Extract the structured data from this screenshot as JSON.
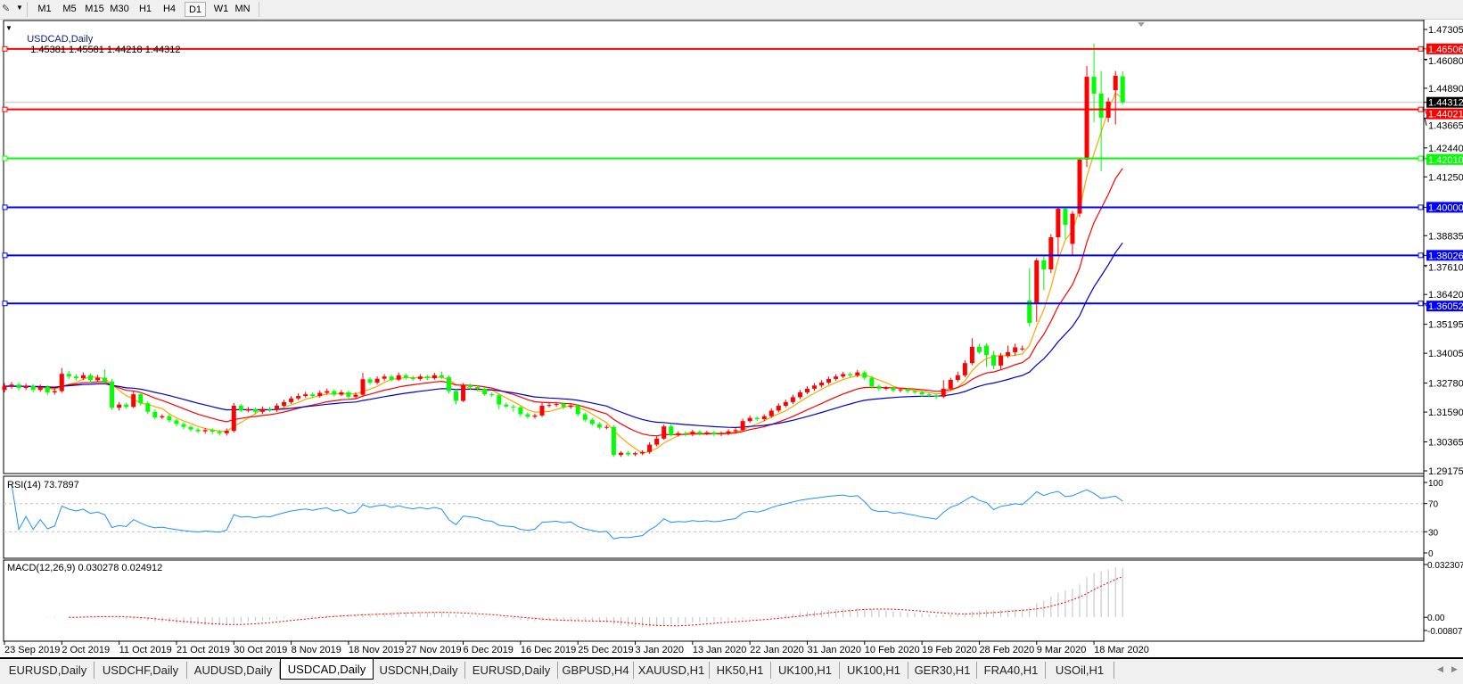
{
  "toolbar": {
    "timeframes": [
      "M1",
      "M5",
      "M15",
      "M30",
      "H1",
      "H4",
      "D1",
      "W1",
      "MN"
    ],
    "active_timeframe": "D1"
  },
  "chart_header": {
    "symbol": "USDCAD,Daily",
    "ohlc": "1.45381 1.45581 1.44218 1.44312"
  },
  "rsi_pane": {
    "label": "RSI(14) 73.7897",
    "levels": [
      "100",
      "70",
      "30",
      "0"
    ]
  },
  "macd_pane": {
    "label": "MACD(12,26,9) 0.030278 0.024912",
    "scale": [
      "0.032307",
      "0.00",
      "-0.008077"
    ]
  },
  "tabs": [
    "EURUSD,Daily",
    "USDCHF,Daily",
    "AUDUSD,Daily",
    "USDCAD,Daily",
    "USDCNH,Daily",
    "EURUSD,Daily",
    "GBPUSD,H4",
    "XAUUSD,H1",
    "HK50,H1",
    "UK100,H1",
    "UK100,H1",
    "GER30,H1",
    "FRA40,H1",
    "USOil,H1"
  ],
  "active_tab": "USDCAD,Daily",
  "colors": {
    "bull_candle": "#ff0000",
    "bear_candle": "#00ff00",
    "ma_fast": "#ffa500",
    "ma_mid": "#ff0000",
    "ma_slow": "#0000c8",
    "rsi": "#1e90ff",
    "macd_hist": "#c0c0c0",
    "macd_signal": "#ff0000"
  },
  "chart_data": {
    "type": "candlestick",
    "symbol": "USDCAD",
    "timeframe": "Daily",
    "ylim": [
      1.29175,
      1.47305
    ],
    "y_ticks": [
      "1.47305",
      "1.46080",
      "1.44890",
      "1.43665",
      "1.42440",
      "1.41250",
      "1.38835",
      "1.37610",
      "1.36420",
      "1.35195",
      "1.34005",
      "1.32780",
      "1.31590",
      "1.30365",
      "1.29175"
    ],
    "x_tick_labels": [
      "23 Sep 2019",
      "2 Oct 2019",
      "11 Oct 2019",
      "21 Oct 2019",
      "30 Oct 2019",
      "8 Nov 2019",
      "18 Nov 2019",
      "27 Nov 2019",
      "6 Dec 2019",
      "16 Dec 2019",
      "25 Dec 2019",
      "3 Jan 2020",
      "13 Jan 2020",
      "22 Jan 2020",
      "31 Jan 2020",
      "10 Feb 2020",
      "19 Feb 2020",
      "28 Feb 2020",
      "9 Mar 2020",
      "18 Mar 2020"
    ],
    "bid": {
      "price": 1.44312,
      "label": "1.44312"
    },
    "horizontal_lines": [
      {
        "price": 1.46506,
        "label": "1.46506",
        "color": "#ff0000"
      },
      {
        "price": 1.44021,
        "label": "1.44021",
        "color": "#ff0000"
      },
      {
        "price": 1.4201,
        "label": "1.42010",
        "color": "#00ff00"
      },
      {
        "price": 1.4,
        "label": "1.40000",
        "color": "#0000ff"
      },
      {
        "price": 1.38026,
        "label": "1.38026",
        "color": "#0000ff"
      },
      {
        "price": 1.36052,
        "label": "1.36052",
        "color": "#0000ff"
      }
    ],
    "ohlc": [
      [
        1.325,
        1.3278,
        1.324,
        1.3265
      ],
      [
        1.3265,
        1.3282,
        1.3255,
        1.3272
      ],
      [
        1.3272,
        1.328,
        1.3248,
        1.3258
      ],
      [
        1.3258,
        1.3276,
        1.325,
        1.3266
      ],
      [
        1.3266,
        1.3274,
        1.324,
        1.325
      ],
      [
        1.325,
        1.3272,
        1.3242,
        1.3262
      ],
      [
        1.3262,
        1.327,
        1.3228,
        1.324
      ],
      [
        1.324,
        1.3256,
        1.323,
        1.3245
      ],
      [
        1.3245,
        1.334,
        1.3238,
        1.3316
      ],
      [
        1.3316,
        1.3328,
        1.3295,
        1.3305
      ],
      [
        1.3305,
        1.3315,
        1.3288,
        1.3298
      ],
      [
        1.3298,
        1.3322,
        1.329,
        1.331
      ],
      [
        1.331,
        1.3318,
        1.328,
        1.329
      ],
      [
        1.329,
        1.3312,
        1.3282,
        1.33
      ],
      [
        1.33,
        1.3335,
        1.3276,
        1.3284
      ],
      [
        1.3284,
        1.3296,
        1.3168,
        1.3177
      ],
      [
        1.3177,
        1.32,
        1.3165,
        1.319
      ],
      [
        1.319,
        1.3198,
        1.3172,
        1.318
      ],
      [
        1.318,
        1.3244,
        1.3175,
        1.3232
      ],
      [
        1.3232,
        1.324,
        1.3185,
        1.3195
      ],
      [
        1.3195,
        1.3204,
        1.315,
        1.316
      ],
      [
        1.316,
        1.317,
        1.3128,
        1.3137
      ],
      [
        1.3137,
        1.315,
        1.313,
        1.3142
      ],
      [
        1.3142,
        1.315,
        1.3115,
        1.3125
      ],
      [
        1.3125,
        1.3132,
        1.31,
        1.311
      ],
      [
        1.311,
        1.3118,
        1.3088,
        1.3098
      ],
      [
        1.3098,
        1.3105,
        1.3078,
        1.3087
      ],
      [
        1.3087,
        1.3095,
        1.3072,
        1.308
      ],
      [
        1.308,
        1.3094,
        1.307,
        1.3085
      ],
      [
        1.3085,
        1.3092,
        1.3068,
        1.3078
      ],
      [
        1.3078,
        1.3086,
        1.3062,
        1.3072
      ],
      [
        1.3072,
        1.3092,
        1.3062,
        1.3082
      ],
      [
        1.3082,
        1.3196,
        1.3075,
        1.3185
      ],
      [
        1.3185,
        1.3192,
        1.3158,
        1.3165
      ],
      [
        1.3165,
        1.318,
        1.3158,
        1.317
      ],
      [
        1.317,
        1.3178,
        1.315,
        1.316
      ],
      [
        1.316,
        1.3182,
        1.3152,
        1.3172
      ],
      [
        1.3172,
        1.318,
        1.316,
        1.3168
      ],
      [
        1.3168,
        1.3195,
        1.316,
        1.3185
      ],
      [
        1.3185,
        1.321,
        1.3178,
        1.32
      ],
      [
        1.32,
        1.3225,
        1.3192,
        1.3215
      ],
      [
        1.3215,
        1.3236,
        1.3208,
        1.3225
      ],
      [
        1.3225,
        1.3242,
        1.3218,
        1.3232
      ],
      [
        1.3232,
        1.324,
        1.3216,
        1.3225
      ],
      [
        1.3225,
        1.3248,
        1.3218,
        1.3238
      ],
      [
        1.3238,
        1.3256,
        1.323,
        1.3245
      ],
      [
        1.3245,
        1.3252,
        1.3222,
        1.323
      ],
      [
        1.323,
        1.325,
        1.3224,
        1.324
      ],
      [
        1.324,
        1.3248,
        1.3214,
        1.3222
      ],
      [
        1.3222,
        1.324,
        1.3215,
        1.323
      ],
      [
        1.323,
        1.332,
        1.3224,
        1.3294
      ],
      [
        1.3294,
        1.3302,
        1.3272,
        1.328
      ],
      [
        1.328,
        1.3306,
        1.3272,
        1.3296
      ],
      [
        1.3296,
        1.3315,
        1.3288,
        1.3305
      ],
      [
        1.3305,
        1.3312,
        1.3284,
        1.3292
      ],
      [
        1.3292,
        1.3322,
        1.3286,
        1.331
      ],
      [
        1.331,
        1.3318,
        1.3292,
        1.33
      ],
      [
        1.33,
        1.3308,
        1.3288,
        1.3295
      ],
      [
        1.3295,
        1.3315,
        1.3288,
        1.3305
      ],
      [
        1.3305,
        1.3312,
        1.329,
        1.3298
      ],
      [
        1.3298,
        1.332,
        1.3292,
        1.331
      ],
      [
        1.331,
        1.3325,
        1.3295,
        1.3302
      ],
      [
        1.3302,
        1.331,
        1.3235,
        1.3245
      ],
      [
        1.3245,
        1.3252,
        1.319,
        1.3205
      ],
      [
        1.3205,
        1.3278,
        1.32,
        1.3269
      ],
      [
        1.3269,
        1.3276,
        1.325,
        1.3262
      ],
      [
        1.3262,
        1.327,
        1.3246,
        1.3255
      ],
      [
        1.3255,
        1.3262,
        1.3225,
        1.3232
      ],
      [
        1.3232,
        1.324,
        1.322,
        1.3228
      ],
      [
        1.3228,
        1.3234,
        1.317,
        1.319
      ],
      [
        1.319,
        1.3198,
        1.3175,
        1.3182
      ],
      [
        1.3182,
        1.319,
        1.316,
        1.3178
      ],
      [
        1.3178,
        1.3186,
        1.314,
        1.315
      ],
      [
        1.315,
        1.3158,
        1.3132,
        1.314
      ],
      [
        1.314,
        1.3152,
        1.3132,
        1.3145
      ],
      [
        1.3145,
        1.3198,
        1.3138,
        1.3185
      ],
      [
        1.3185,
        1.3196,
        1.3178,
        1.3188
      ],
      [
        1.3188,
        1.32,
        1.318,
        1.3192
      ],
      [
        1.3192,
        1.3198,
        1.3172,
        1.318
      ],
      [
        1.318,
        1.3192,
        1.3172,
        1.3185
      ],
      [
        1.3185,
        1.3192,
        1.3142,
        1.315
      ],
      [
        1.315,
        1.3158,
        1.3118,
        1.3127
      ],
      [
        1.3127,
        1.3135,
        1.3102,
        1.311
      ],
      [
        1.311,
        1.3118,
        1.3088,
        1.3095
      ],
      [
        1.3095,
        1.3106,
        1.3088,
        1.3098
      ],
      [
        1.3098,
        1.3104,
        1.2975,
        1.2983
      ],
      [
        1.2983,
        1.2998,
        1.2975,
        1.2992
      ],
      [
        1.2992,
        1.3,
        1.2978,
        1.2985
      ],
      [
        1.2985,
        1.2996,
        1.2978,
        1.299
      ],
      [
        1.2989,
        1.3002,
        1.2982,
        1.2995
      ],
      [
        1.2995,
        1.3035,
        1.2988,
        1.3025
      ],
      [
        1.3025,
        1.306,
        1.3018,
        1.305
      ],
      [
        1.305,
        1.3108,
        1.3045,
        1.31
      ],
      [
        1.31,
        1.3112,
        1.3058,
        1.3065
      ],
      [
        1.3065,
        1.308,
        1.3058,
        1.3072
      ],
      [
        1.3072,
        1.308,
        1.306,
        1.3068
      ],
      [
        1.3068,
        1.3086,
        1.306,
        1.3078
      ],
      [
        1.3078,
        1.3085,
        1.3062,
        1.307
      ],
      [
        1.307,
        1.3082,
        1.3064,
        1.3075
      ],
      [
        1.3075,
        1.3082,
        1.306,
        1.3068
      ],
      [
        1.3068,
        1.308,
        1.306,
        1.3072
      ],
      [
        1.3072,
        1.3088,
        1.3064,
        1.308
      ],
      [
        1.308,
        1.3094,
        1.3072,
        1.3085
      ],
      [
        1.3085,
        1.3132,
        1.3078,
        1.3122
      ],
      [
        1.3122,
        1.3145,
        1.3115,
        1.3135
      ],
      [
        1.3135,
        1.3142,
        1.3122,
        1.313
      ],
      [
        1.313,
        1.315,
        1.3122,
        1.3142
      ],
      [
        1.3142,
        1.3175,
        1.3135,
        1.3165
      ],
      [
        1.3165,
        1.3195,
        1.3158,
        1.3185
      ],
      [
        1.3185,
        1.321,
        1.3178,
        1.32
      ],
      [
        1.32,
        1.323,
        1.3192,
        1.322
      ],
      [
        1.322,
        1.325,
        1.3212,
        1.324
      ],
      [
        1.324,
        1.3265,
        1.3232,
        1.3255
      ],
      [
        1.3255,
        1.3278,
        1.3246,
        1.3268
      ],
      [
        1.3268,
        1.329,
        1.326,
        1.328
      ],
      [
        1.328,
        1.3305,
        1.3272,
        1.3295
      ],
      [
        1.3295,
        1.3315,
        1.3288,
        1.3305
      ],
      [
        1.3305,
        1.3325,
        1.3298,
        1.3315
      ],
      [
        1.3315,
        1.3322,
        1.3302,
        1.331
      ],
      [
        1.331,
        1.3332,
        1.3302,
        1.3322
      ],
      [
        1.3322,
        1.333,
        1.329,
        1.33
      ],
      [
        1.33,
        1.3308,
        1.3255,
        1.3265
      ],
      [
        1.3265,
        1.3272,
        1.3245,
        1.3255
      ],
      [
        1.3255,
        1.3266,
        1.3248,
        1.3258
      ],
      [
        1.3258,
        1.3265,
        1.324,
        1.3248
      ],
      [
        1.3248,
        1.326,
        1.324,
        1.3252
      ],
      [
        1.3252,
        1.326,
        1.3236,
        1.3245
      ],
      [
        1.3245,
        1.3252,
        1.3232,
        1.324
      ],
      [
        1.324,
        1.325,
        1.3222,
        1.3232
      ],
      [
        1.3232,
        1.324,
        1.322,
        1.3228
      ],
      [
        1.3228,
        1.3236,
        1.3212,
        1.3222
      ],
      [
        1.3222,
        1.329,
        1.3216,
        1.3255
      ],
      [
        1.3255,
        1.33,
        1.3248,
        1.3291
      ],
      [
        1.3291,
        1.3325,
        1.3282,
        1.331
      ],
      [
        1.331,
        1.3372,
        1.3302,
        1.336
      ],
      [
        1.336,
        1.3462,
        1.3352,
        1.3427
      ],
      [
        1.3427,
        1.344,
        1.3398,
        1.3405
      ],
      [
        1.3432,
        1.3442,
        1.3345,
        1.3393
      ],
      [
        1.3393,
        1.341,
        1.3335,
        1.335
      ],
      [
        1.335,
        1.3402,
        1.3335,
        1.339
      ],
      [
        1.339,
        1.3432,
        1.3382,
        1.3405
      ],
      [
        1.3405,
        1.344,
        1.339,
        1.3425
      ],
      [
        1.342,
        1.3432,
        1.341,
        1.342
      ],
      [
        1.3617,
        1.375,
        1.351,
        1.3525
      ],
      [
        1.3606,
        1.3792,
        1.353,
        1.3782
      ],
      [
        1.3782,
        1.38,
        1.366,
        1.3745
      ],
      [
        1.3745,
        1.389,
        1.373,
        1.3877
      ],
      [
        1.3877,
        1.4,
        1.38,
        1.3994
      ],
      [
        1.3994,
        1.4,
        1.387,
        1.3928
      ],
      [
        1.385,
        1.3985,
        1.38,
        1.3974
      ],
      [
        1.3974,
        1.42,
        1.396,
        1.4196
      ],
      [
        1.4196,
        1.458,
        1.4165,
        1.4536
      ],
      [
        1.4536,
        1.4672,
        1.435,
        1.4467
      ],
      [
        1.4467,
        1.456,
        1.4148,
        1.4368
      ],
      [
        1.4368,
        1.445,
        1.435,
        1.4434
      ],
      [
        1.4481,
        1.456,
        1.434,
        1.454
      ],
      [
        1.45381,
        1.45581,
        1.44218,
        1.44312
      ]
    ]
  }
}
